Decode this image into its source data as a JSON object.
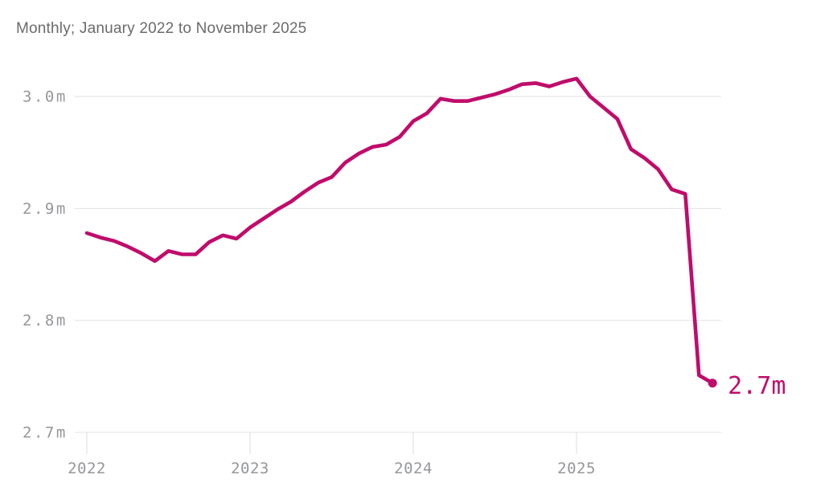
{
  "chart_data": {
    "type": "line",
    "title": "",
    "subtitle": "Monthly; January 2022 to November 2025",
    "unit": "millions",
    "legend": "none",
    "grid": true,
    "ylim": [
      2.7,
      3.05
    ],
    "end_label": "2.7m",
    "y_ticks": [
      {
        "value": 3.0,
        "label": "3.0m"
      },
      {
        "value": 2.9,
        "label": "2.9m"
      },
      {
        "value": 2.8,
        "label": "2.8m"
      },
      {
        "value": 2.7,
        "label": "2.7m"
      }
    ],
    "x_ticks": [
      {
        "month_index": 0,
        "label": "2022"
      },
      {
        "month_index": 12,
        "label": "2023"
      },
      {
        "month_index": 24,
        "label": "2024"
      },
      {
        "month_index": 36,
        "label": "2025"
      }
    ],
    "x": [
      "Jan 2022",
      "Feb 2022",
      "Mar 2022",
      "Apr 2022",
      "May 2022",
      "Jun 2022",
      "Jul 2022",
      "Aug 2022",
      "Sep 2022",
      "Oct 2022",
      "Nov 2022",
      "Dec 2022",
      "Jan 2023",
      "Feb 2023",
      "Mar 2023",
      "Apr 2023",
      "May 2023",
      "Jun 2023",
      "Jul 2023",
      "Aug 2023",
      "Sep 2023",
      "Oct 2023",
      "Nov 2023",
      "Dec 2023",
      "Jan 2024",
      "Feb 2024",
      "Mar 2024",
      "Apr 2024",
      "May 2024",
      "Jun 2024",
      "Jul 2024",
      "Aug 2024",
      "Sep 2024",
      "Oct 2024",
      "Nov 2024",
      "Dec 2024",
      "Jan 2025",
      "Feb 2025",
      "Mar 2025",
      "Apr 2025",
      "May 2025",
      "Jun 2025",
      "Jul 2025",
      "Aug 2025",
      "Sep 2025",
      "Oct 2025",
      "Nov 2025"
    ],
    "values": [
      2.878,
      2.874,
      2.871,
      2.866,
      2.86,
      2.853,
      2.862,
      2.859,
      2.859,
      2.87,
      2.876,
      2.873,
      2.883,
      2.891,
      2.899,
      2.906,
      2.915,
      2.923,
      2.928,
      2.941,
      2.949,
      2.955,
      2.957,
      2.964,
      2.978,
      2.985,
      2.998,
      2.996,
      2.996,
      2.999,
      3.002,
      3.006,
      3.011,
      3.012,
      3.009,
      3.013,
      3.016,
      3.0,
      2.99,
      2.98,
      2.953,
      2.945,
      2.935,
      2.917,
      2.913,
      2.751,
      2.744
    ]
  },
  "colors": {
    "series": "#C00C6B",
    "axis_label": "#95979A",
    "grid": "#E3E3E3",
    "tick": "#DCDCDC",
    "subtitle": "#6B6B6B",
    "background": "#FFFFFF"
  }
}
